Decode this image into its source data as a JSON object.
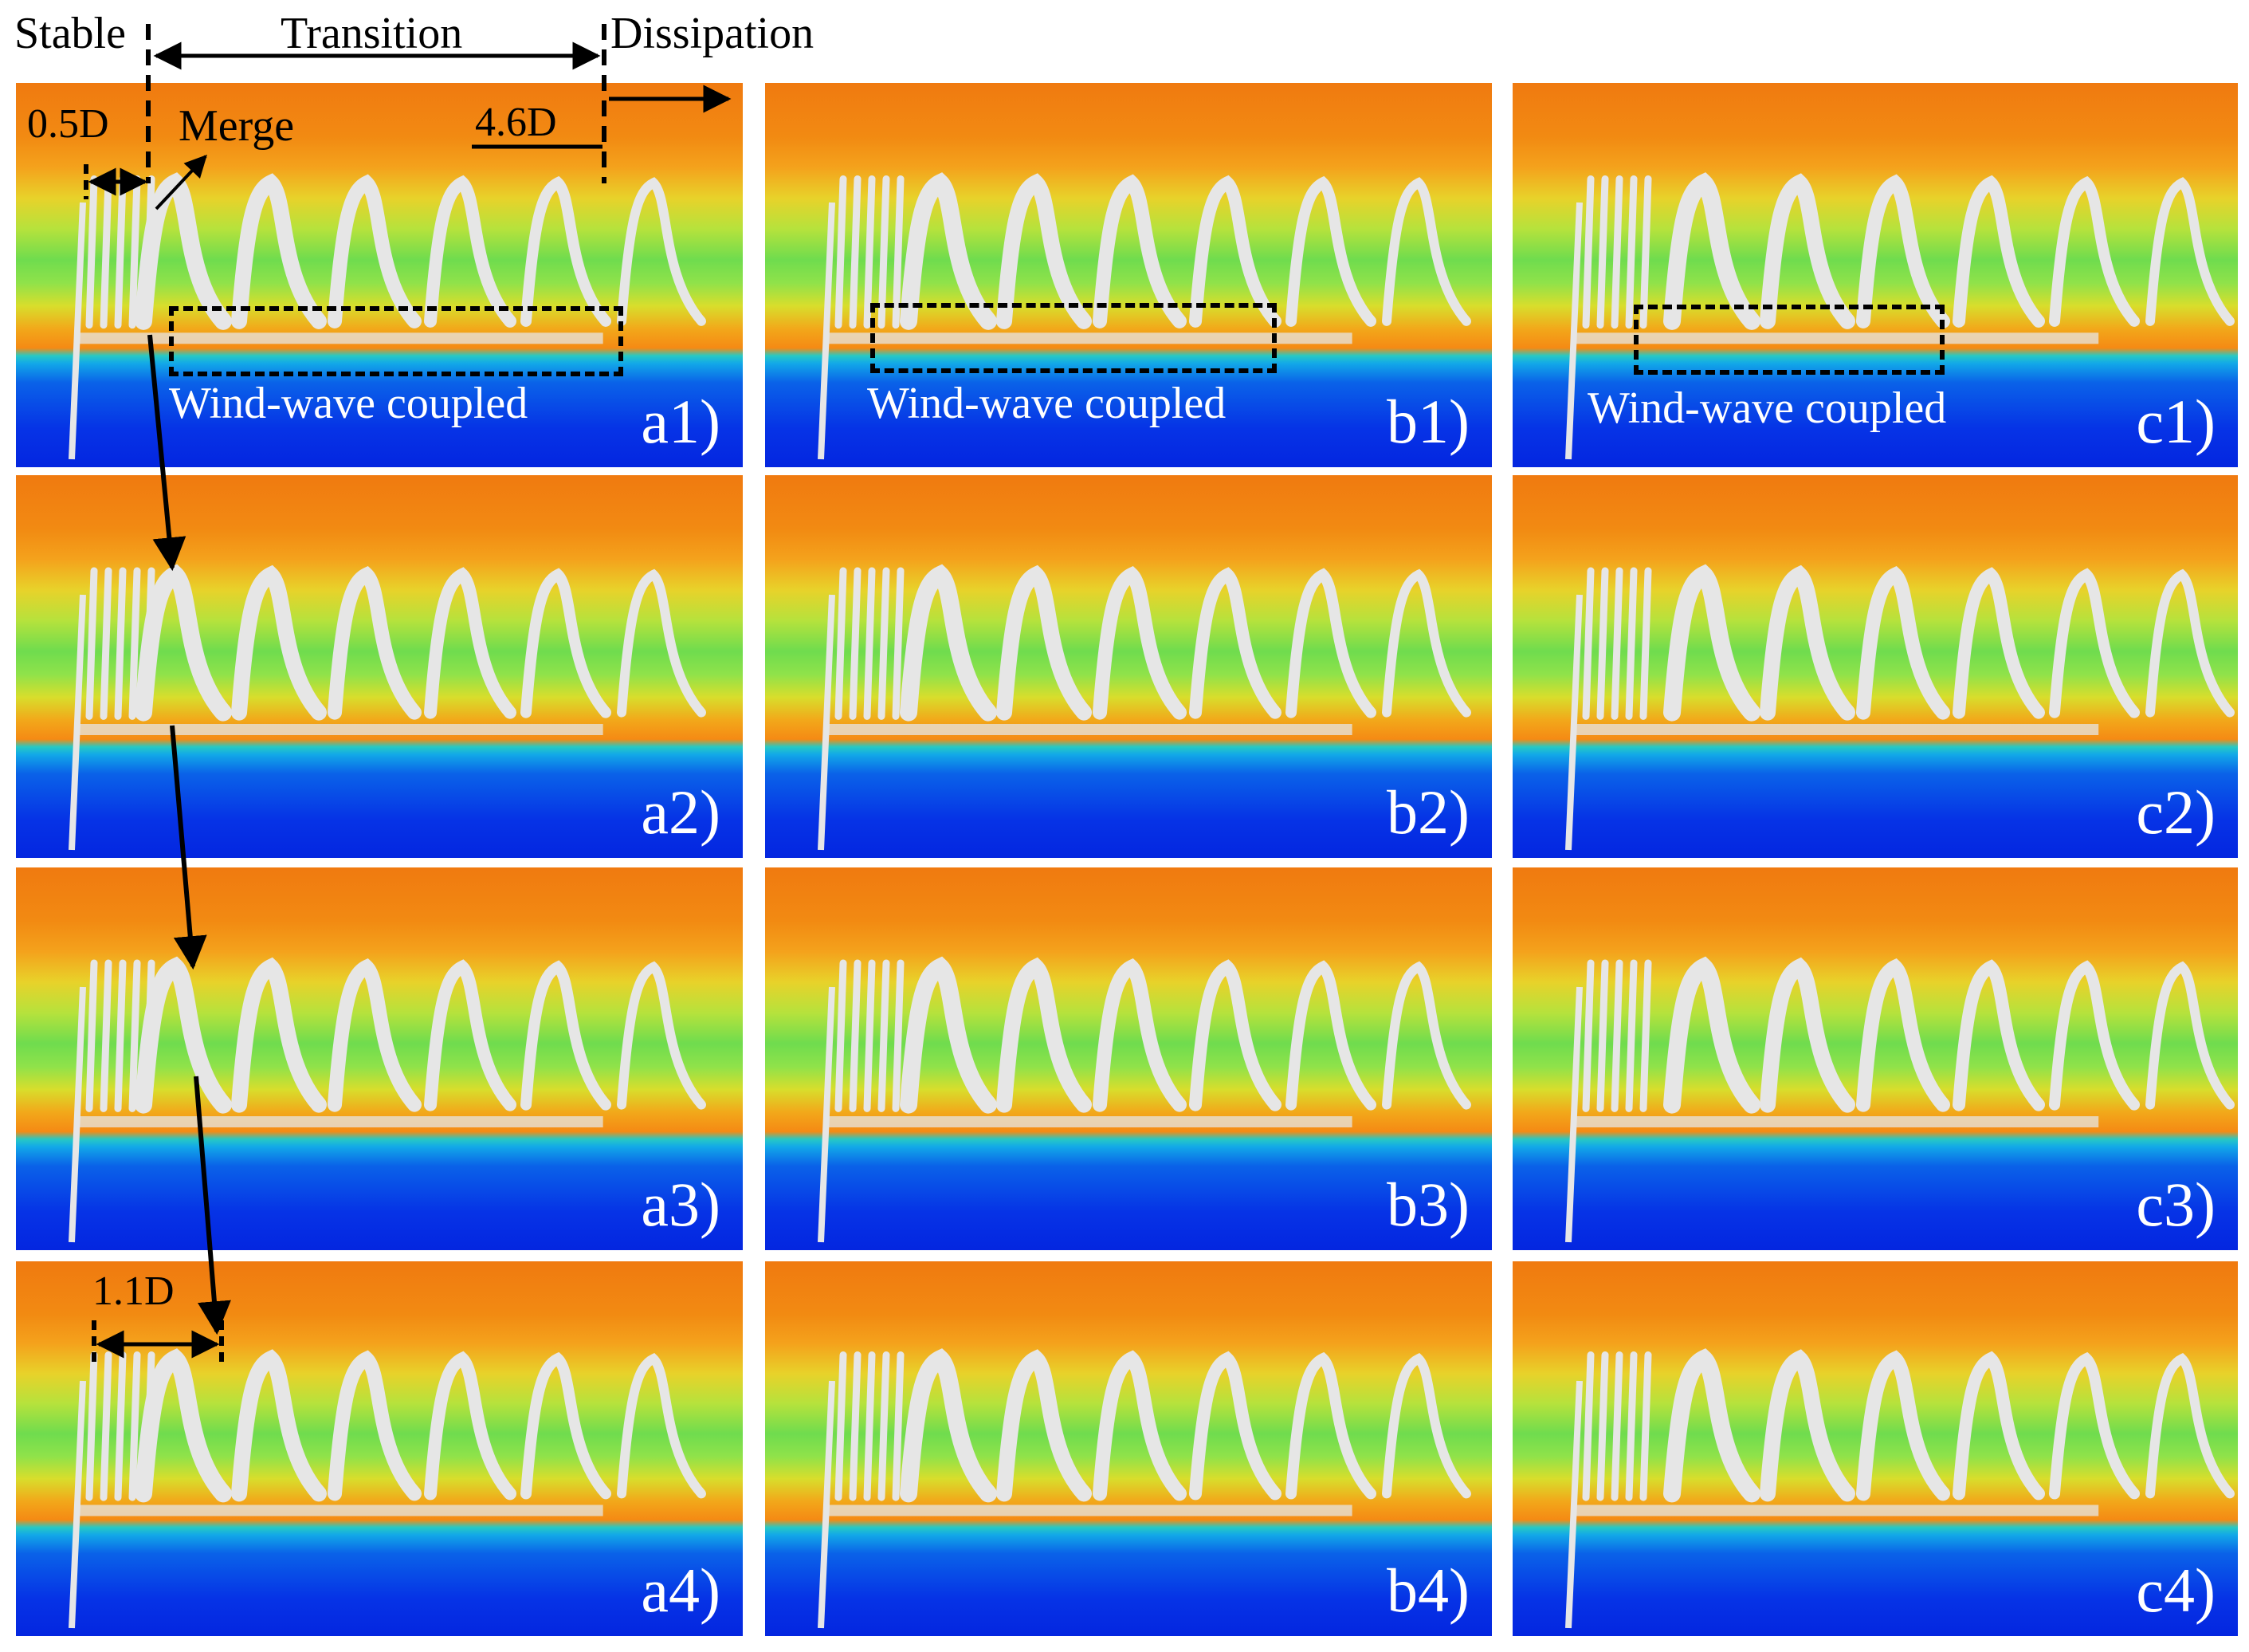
{
  "annotations": {
    "stable": "Stable",
    "transition": "Transition",
    "dissipation": "Dissipation",
    "merge": "Merge",
    "d_05": "0.5D",
    "d_46": "4.6D",
    "d_11": "1.1D"
  },
  "coupled_label": "Wind-wave coupled",
  "panels": [
    {
      "id": "a1",
      "label": "a1)"
    },
    {
      "id": "b1",
      "label": "b1)"
    },
    {
      "id": "c1",
      "label": "c1)"
    },
    {
      "id": "a2",
      "label": "a2)"
    },
    {
      "id": "b2",
      "label": "b2)"
    },
    {
      "id": "c2",
      "label": "c2)"
    },
    {
      "id": "a3",
      "label": "a3)"
    },
    {
      "id": "b3",
      "label": "b3)"
    },
    {
      "id": "c3",
      "label": "c3)"
    },
    {
      "id": "a4",
      "label": "a4)"
    },
    {
      "id": "b4",
      "label": "b4)"
    },
    {
      "id": "c4",
      "label": "c4)"
    }
  ],
  "colors": {
    "vortex": "#e6e6e6",
    "annotation": "#000000",
    "panel_label": "#ffffff"
  }
}
